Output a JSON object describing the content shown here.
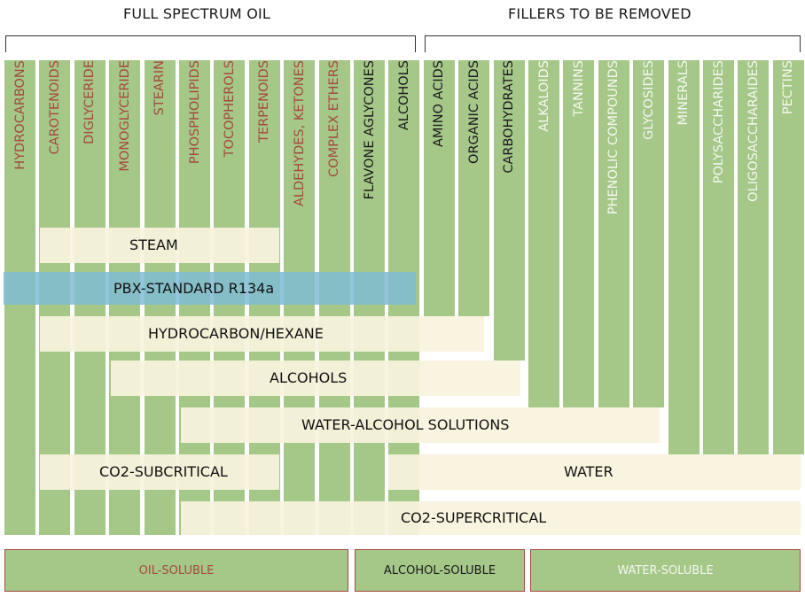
{
  "headers": {
    "full_spectrum": "FULL SPECTRUM OIL",
    "fillers": "FILLERS TO BE REMOVED"
  },
  "colors": {
    "column_green": "#a5c788",
    "oil_text": "#a44a3f",
    "alcohol_text": "#1a1a1a",
    "water_text": "#f4f8ee",
    "band_cream": "#f7f3dd",
    "band_blue": "#80bcd4",
    "legend_border": "#a44a3f"
  },
  "columns": [
    {
      "label": "HYDROCARBONS",
      "group": "oil"
    },
    {
      "label": "CAROTENOIDS",
      "group": "oil"
    },
    {
      "label": "DIGLYCERIDE",
      "group": "oil"
    },
    {
      "label": "MONOGLYCERIDE",
      "group": "oil"
    },
    {
      "label": "STEARIN",
      "group": "oil"
    },
    {
      "label": "PHOSPHOLIPIDS",
      "group": "oil"
    },
    {
      "label": "TOCOPHEROLS",
      "group": "oil"
    },
    {
      "label": "TERPENOIDS",
      "group": "oil"
    },
    {
      "label": "ALDEHYDES, KETONES",
      "group": "oil"
    },
    {
      "label": "COMPLEX ETHERS",
      "group": "oil"
    },
    {
      "label": "FLAVONE AGLYCONES",
      "group": "alcohol"
    },
    {
      "label": "ALCOHOLS",
      "group": "alcohol"
    },
    {
      "label": "AMINO ACIDS",
      "group": "alcohol"
    },
    {
      "label": "ORGANIC ACIDS",
      "group": "alcohol"
    },
    {
      "label": "CARBOHYDRATES",
      "group": "alcohol"
    },
    {
      "label": "ALKALOIDS",
      "group": "water"
    },
    {
      "label": "TANNINS",
      "group": "water"
    },
    {
      "label": "PHENOLIC COMPOUNDS",
      "group": "water"
    },
    {
      "label": "GLYCOSIDES",
      "group": "water"
    },
    {
      "label": "MINERALS",
      "group": "water"
    },
    {
      "label": "POLYSACCHARIDES",
      "group": "water"
    },
    {
      "label": "OLIGOSACCHARAIDES",
      "group": "water"
    },
    {
      "label": "PECTINS",
      "group": "water"
    }
  ],
  "solvents": {
    "steam": "STEAM",
    "pbx": "PBX-STANDARD R134a",
    "hydrocarbon": "HYDROCARBON/HEXANE",
    "alcohols": "ALCOHOLS",
    "water_alcohol": "WATER-ALCOHOL SOLUTIONS",
    "co2_sub": "CO2-SUBCRITICAL",
    "water": "WATER",
    "co2_super": "CO2-SUPERCRITICAL"
  },
  "legend": {
    "oil": "OIL-SOLUBLE",
    "alcohol": "ALCOHOL-SOLUBLE",
    "water": "WATER-SOLUBLE"
  }
}
